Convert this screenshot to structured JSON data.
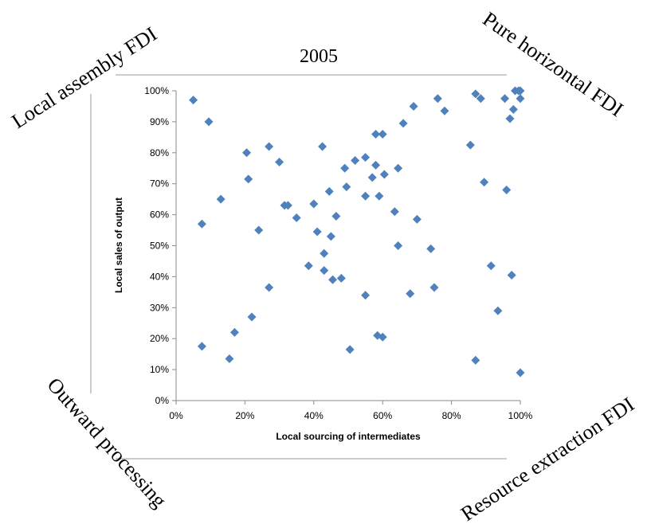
{
  "corners": {
    "top_left": "Local assembly FDI",
    "top_right": "Pure horizontal FDI",
    "bottom_left": "Outward processing",
    "bottom_right": "Resource extraction FDI"
  },
  "colors": {
    "point": "#4f81bd",
    "axis": "#8a8a8a",
    "frame": "#9a9a9a"
  },
  "chart_data": {
    "type": "scatter",
    "title": "2005",
    "xlabel": "Local sourcing of intermediates",
    "ylabel": "Local sales of output",
    "xlim": [
      0,
      100
    ],
    "ylim": [
      0,
      100
    ],
    "x_ticks": [
      "0%",
      "20%",
      "40%",
      "60%",
      "80%",
      "100%"
    ],
    "y_ticks": [
      "0%",
      "10%",
      "20%",
      "30%",
      "40%",
      "50%",
      "60%",
      "70%",
      "80%",
      "90%",
      "100%"
    ],
    "grid": false,
    "legend": "none",
    "points": [
      {
        "x": 5,
        "y": 97
      },
      {
        "x": 9.5,
        "y": 90
      },
      {
        "x": 7.5,
        "y": 57
      },
      {
        "x": 7.5,
        "y": 17.5
      },
      {
        "x": 13,
        "y": 65
      },
      {
        "x": 15.5,
        "y": 13.5
      },
      {
        "x": 17,
        "y": 22
      },
      {
        "x": 20.5,
        "y": 80
      },
      {
        "x": 21,
        "y": 71.5
      },
      {
        "x": 22,
        "y": 27
      },
      {
        "x": 24,
        "y": 55
      },
      {
        "x": 27,
        "y": 82
      },
      {
        "x": 27,
        "y": 36.5
      },
      {
        "x": 30,
        "y": 77
      },
      {
        "x": 31.5,
        "y": 63
      },
      {
        "x": 32.5,
        "y": 63
      },
      {
        "x": 35,
        "y": 59
      },
      {
        "x": 38.5,
        "y": 43.5
      },
      {
        "x": 40,
        "y": 63.5
      },
      {
        "x": 41,
        "y": 54.5
      },
      {
        "x": 42.5,
        "y": 82
      },
      {
        "x": 43,
        "y": 47.5
      },
      {
        "x": 43,
        "y": 42
      },
      {
        "x": 44.5,
        "y": 67.5
      },
      {
        "x": 45,
        "y": 53
      },
      {
        "x": 45.5,
        "y": 39
      },
      {
        "x": 46.5,
        "y": 59.5
      },
      {
        "x": 48,
        "y": 39.5
      },
      {
        "x": 49,
        "y": 75
      },
      {
        "x": 49.5,
        "y": 69
      },
      {
        "x": 50.5,
        "y": 16.5
      },
      {
        "x": 52,
        "y": 77.5
      },
      {
        "x": 55,
        "y": 78.5
      },
      {
        "x": 55,
        "y": 66
      },
      {
        "x": 55,
        "y": 34
      },
      {
        "x": 57,
        "y": 72
      },
      {
        "x": 58,
        "y": 86
      },
      {
        "x": 58,
        "y": 76
      },
      {
        "x": 58.5,
        "y": 21
      },
      {
        "x": 59,
        "y": 66
      },
      {
        "x": 60,
        "y": 86
      },
      {
        "x": 60,
        "y": 20.5
      },
      {
        "x": 60.5,
        "y": 73
      },
      {
        "x": 63.5,
        "y": 61
      },
      {
        "x": 64.5,
        "y": 75
      },
      {
        "x": 64.5,
        "y": 50
      },
      {
        "x": 66,
        "y": 89.5
      },
      {
        "x": 68,
        "y": 34.5
      },
      {
        "x": 69,
        "y": 95
      },
      {
        "x": 70,
        "y": 58.5
      },
      {
        "x": 74,
        "y": 49
      },
      {
        "x": 75,
        "y": 36.5
      },
      {
        "x": 76,
        "y": 97.5
      },
      {
        "x": 78,
        "y": 93.5
      },
      {
        "x": 85.5,
        "y": 82.5
      },
      {
        "x": 87,
        "y": 99
      },
      {
        "x": 87,
        "y": 13
      },
      {
        "x": 88.5,
        "y": 97.5
      },
      {
        "x": 89.5,
        "y": 70.5
      },
      {
        "x": 91.5,
        "y": 43.5
      },
      {
        "x": 93.5,
        "y": 29
      },
      {
        "x": 95.5,
        "y": 97.5
      },
      {
        "x": 96,
        "y": 68
      },
      {
        "x": 97,
        "y": 91
      },
      {
        "x": 97.5,
        "y": 40.5
      },
      {
        "x": 98,
        "y": 94
      },
      {
        "x": 98.5,
        "y": 100
      },
      {
        "x": 99.5,
        "y": 100
      },
      {
        "x": 100,
        "y": 100
      },
      {
        "x": 100,
        "y": 97.5
      },
      {
        "x": 100,
        "y": 9
      }
    ]
  }
}
